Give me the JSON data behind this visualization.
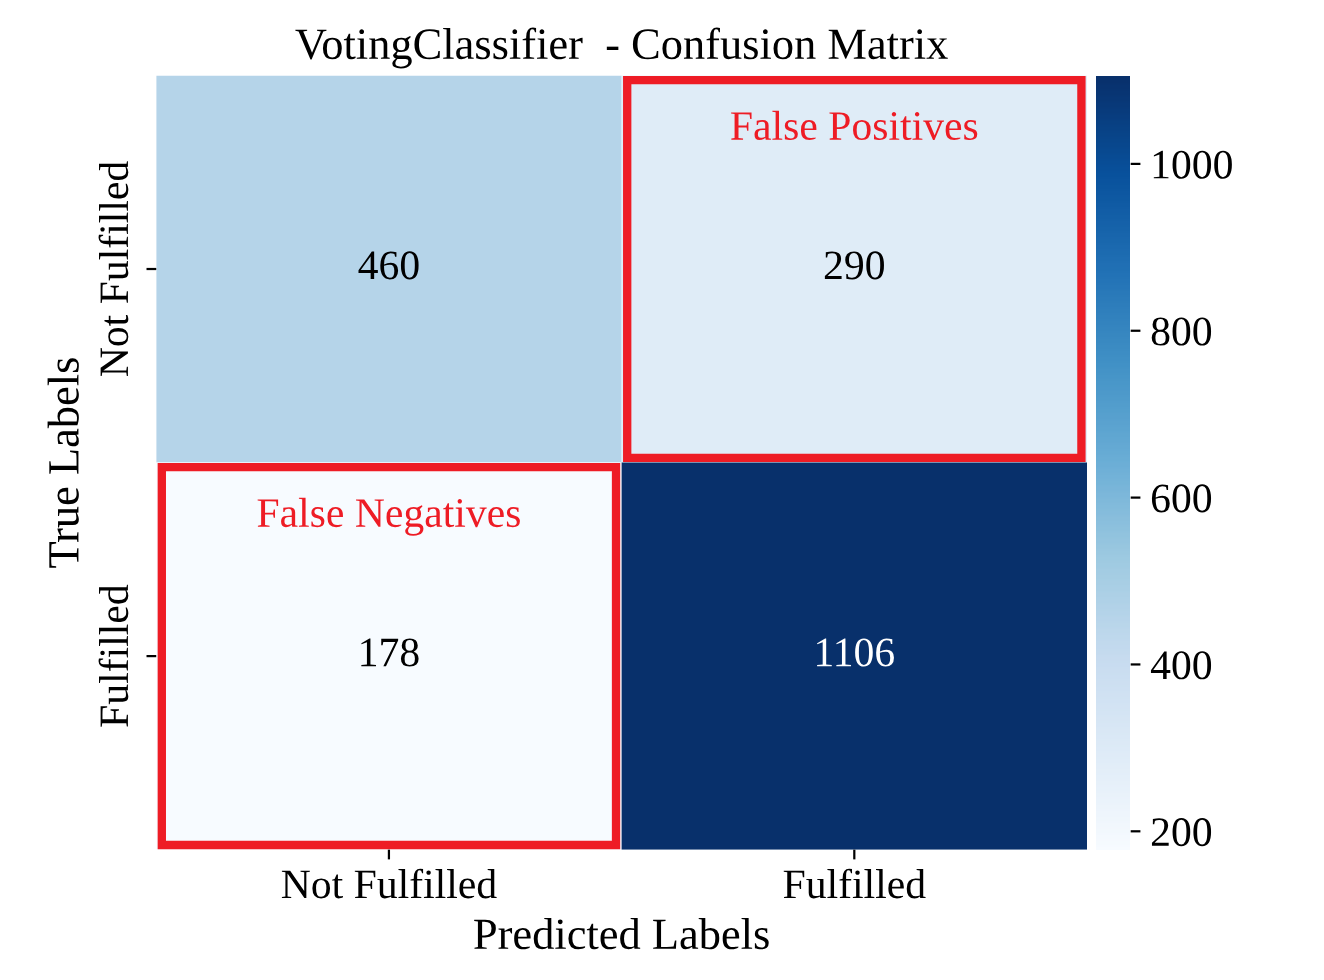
{
  "chart_data": {
    "type": "heatmap",
    "title": "VotingClassifier  - Confusion Matrix",
    "xlabel": "Predicted Labels",
    "ylabel": "True Labels",
    "categories": [
      "Not Fulfilled",
      "Fulfilled"
    ],
    "y_categories": [
      "Not Fulfilled",
      "Fulfilled"
    ],
    "cells": [
      [
        460,
        290
      ],
      [
        178,
        1106
      ]
    ],
    "data_labels": true,
    "clim": [
      178,
      1106
    ],
    "cticks": [
      200,
      400,
      600,
      800,
      1000
    ],
    "annotations": [
      "False Positives",
      "False Negatives"
    ]
  }
}
